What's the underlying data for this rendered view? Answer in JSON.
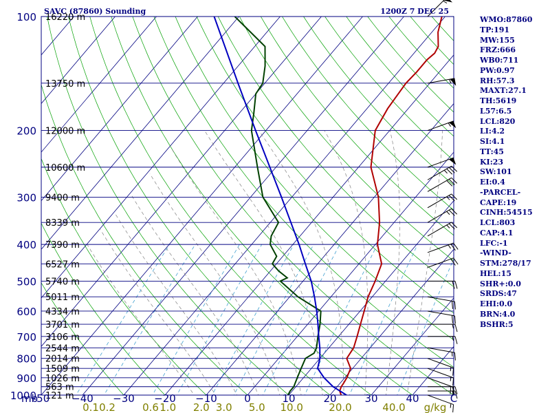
{
  "header": {
    "station": "SAVC (87860) Sounding",
    "time": "1200Z  7 DEC 25"
  },
  "indices": [
    "WMO:87860",
    "TP:191",
    "MW:155",
    "FRZ:666",
    "WB0:711",
    "PW:0.97",
    "RH:57.3",
    "MAXT:27.1",
    "TH:5619",
    "L57:6.5",
    "LCL:820",
    "LI:4.2",
    "SI:4.1",
    "TT:45",
    "KI:23",
    "SW:101",
    "EI:0.4",
    "-PARCEL-",
    "CAPE:19",
    "CINH:54515",
    "LCL:803",
    "CAP:4.1",
    "LFC:-1",
    "-WIND-",
    "STM:278/17",
    "HEL:15",
    "SHR+:0.0",
    "SRDS:47",
    "EHI:0.0",
    "BRN:4.0",
    "BSHR:5"
  ],
  "chart_data": {
    "type": "line",
    "diagram": "skew-T log-P",
    "pressure_unit": "mb",
    "temperature_unit": "C",
    "mixing_ratio_unit": "g/kg",
    "ylim": [
      1000,
      100
    ],
    "xlim": [
      -50,
      50
    ],
    "pressure_ticks": [
      {
        "value": 100,
        "label": "100"
      },
      {
        "value": 200,
        "label": "200"
      },
      {
        "value": 300,
        "label": "300"
      },
      {
        "value": 400,
        "label": "400"
      },
      {
        "value": 500,
        "label": "500"
      },
      {
        "value": 600,
        "label": "600"
      },
      {
        "value": 700,
        "label": "700"
      },
      {
        "value": 800,
        "label": "800"
      },
      {
        "value": 900,
        "label": "900"
      },
      {
        "value": 1000,
        "label": "1000"
      }
    ],
    "pressure_axis_label": "mb",
    "height_levels": [
      {
        "p": 100,
        "label": "16220 m"
      },
      {
        "p": 150,
        "label": "13750 m"
      },
      {
        "p": 200,
        "label": "12000 m"
      },
      {
        "p": 250,
        "label": "10600 m"
      },
      {
        "p": 300,
        "label": "9400 m"
      },
      {
        "p": 350,
        "label": "8339 m"
      },
      {
        "p": 400,
        "label": "7390 m"
      },
      {
        "p": 450,
        "label": "6527 m"
      },
      {
        "p": 500,
        "label": "5740 m"
      },
      {
        "p": 550,
        "label": "5011 m"
      },
      {
        "p": 600,
        "label": "4334 m"
      },
      {
        "p": 650,
        "label": "3701 m"
      },
      {
        "p": 700,
        "label": "3106 m"
      },
      {
        "p": 750,
        "label": "2544 m"
      },
      {
        "p": 800,
        "label": "2014 m"
      },
      {
        "p": 850,
        "label": "1509 m"
      },
      {
        "p": 900,
        "label": "1026 m"
      },
      {
        "p": 950,
        "label": "563 m"
      },
      {
        "p": 1000,
        "label": "121 m"
      }
    ],
    "temperature_ticks": [
      {
        "value": -50,
        "label": "-50"
      },
      {
        "value": -40,
        "label": "−40"
      },
      {
        "value": -30,
        "label": "−30"
      },
      {
        "value": -20,
        "label": "−20"
      },
      {
        "value": -10,
        "label": "−10"
      },
      {
        "value": 0,
        "label": "0"
      },
      {
        "value": 10,
        "label": "10"
      },
      {
        "value": 20,
        "label": "20"
      },
      {
        "value": 30,
        "label": "30"
      },
      {
        "value": 40,
        "label": "40"
      },
      {
        "value": 50,
        "label": "C"
      }
    ],
    "mixing_ratio_labels": [
      {
        "value": 0.1,
        "label": "0.1",
        "x": -38.0
      },
      {
        "value": 0.2,
        "label": "0.2",
        "x": -34.0
      },
      {
        "value": 0.6,
        "label": "0.6",
        "x": -23.5
      },
      {
        "value": 1.0,
        "label": "1.0",
        "x": -19.3
      },
      {
        "value": 2.0,
        "label": "2.0",
        "x": -11.2
      },
      {
        "value": 3.0,
        "label": "3.0",
        "x": -5.7
      },
      {
        "value": 5.0,
        "label": "5.0",
        "x": 2.3
      },
      {
        "value": 10.0,
        "label": "10.0",
        "x": 10.7
      },
      {
        "value": 20.0,
        "label": "20.0",
        "x": 22.5
      },
      {
        "value": 40.0,
        "label": "40.0",
        "x": 35.5
      },
      {
        "value": null,
        "label": "g/kg",
        "x": 45.5
      }
    ],
    "series": [
      {
        "color": "#b00000",
        "points": [
          [
            1000,
            22.7
          ],
          [
            975,
            21.5
          ],
          [
            950,
            21.0
          ],
          [
            925,
            20.8
          ],
          [
            900,
            20.5
          ],
          [
            850,
            19.5
          ],
          [
            800,
            16.5
          ],
          [
            750,
            16.0
          ],
          [
            700,
            14.5
          ],
          [
            650,
            12.8
          ],
          [
            600,
            11.0
          ],
          [
            550,
            9.0
          ],
          [
            500,
            7.5
          ],
          [
            450,
            5.5
          ],
          [
            400,
            0.5
          ],
          [
            350,
            -3.5
          ],
          [
            300,
            -9.0
          ],
          [
            250,
            -17.0
          ],
          [
            200,
            -23.5
          ],
          [
            175,
            -25.0
          ],
          [
            150,
            -25.8
          ],
          [
            140,
            -25.5
          ],
          [
            130,
            -25.5
          ],
          [
            125,
            -25.0
          ],
          [
            120,
            -25.5
          ],
          [
            110,
            -28.5
          ],
          [
            100,
            -30.8
          ]
        ]
      },
      {
        "color": "#004000",
        "points": [
          [
            1000,
            9.8
          ],
          [
            975,
            9.5
          ],
          [
            950,
            9.5
          ],
          [
            925,
            9.0
          ],
          [
            900,
            8.5
          ],
          [
            850,
            7.5
          ],
          [
            800,
            6.5
          ],
          [
            775,
            7.5
          ],
          [
            750,
            7.0
          ],
          [
            700,
            5.0
          ],
          [
            650,
            3.0
          ],
          [
            600,
            0.5
          ],
          [
            550,
            -8.0
          ],
          [
            500,
            -15.5
          ],
          [
            490,
            -14.5
          ],
          [
            470,
            -18.0
          ],
          [
            450,
            -21.0
          ],
          [
            430,
            -21.5
          ],
          [
            400,
            -25.5
          ],
          [
            380,
            -27.0
          ],
          [
            350,
            -28.0
          ],
          [
            300,
            -37.0
          ],
          [
            250,
            -44.5
          ],
          [
            200,
            -53.5
          ],
          [
            180,
            -56.5
          ],
          [
            160,
            -60.0
          ],
          [
            150,
            -60.5
          ],
          [
            135,
            -63.5
          ],
          [
            120,
            -67.5
          ],
          [
            100,
            -81.0
          ]
        ]
      },
      {
        "color": "#0000c0",
        "points": [
          [
            1000,
            24.0
          ],
          [
            950,
            19.0
          ],
          [
            900,
            15.0
          ],
          [
            850,
            11.5
          ],
          [
            800,
            10.0
          ],
          [
            750,
            7.8
          ],
          [
            700,
            5.2
          ],
          [
            650,
            2.5
          ],
          [
            600,
            -0.5
          ],
          [
            550,
            -4.0
          ],
          [
            500,
            -8.0
          ],
          [
            450,
            -13.0
          ],
          [
            400,
            -18.5
          ],
          [
            350,
            -25.0
          ],
          [
            300,
            -32.5
          ],
          [
            250,
            -41.5
          ],
          [
            200,
            -52.5
          ],
          [
            150,
            -66.5
          ],
          [
            100,
            -86.0
          ]
        ]
      }
    ],
    "wind_barbs": [
      {
        "p": 100,
        "dir": 45,
        "kt": 55
      },
      {
        "p": 150,
        "dir": 80,
        "kt": 55
      },
      {
        "p": 200,
        "dir": 70,
        "kt": 55
      },
      {
        "p": 250,
        "dir": 70,
        "kt": 50
      },
      {
        "p": 270,
        "dir": 60,
        "kt": 35
      },
      {
        "p": 290,
        "dir": 60,
        "kt": 30
      },
      {
        "p": 320,
        "dir": 60,
        "kt": 25
      },
      {
        "p": 350,
        "dir": 60,
        "kt": 25
      },
      {
        "p": 380,
        "dir": 60,
        "kt": 25
      },
      {
        "p": 420,
        "dir": 70,
        "kt": 25
      },
      {
        "p": 460,
        "dir": 70,
        "kt": 20
      },
      {
        "p": 500,
        "dir": 90,
        "kt": 20
      },
      {
        "p": 550,
        "dir": 100,
        "kt": 20
      },
      {
        "p": 600,
        "dir": 100,
        "kt": 20
      },
      {
        "p": 650,
        "dir": 90,
        "kt": 15
      },
      {
        "p": 700,
        "dir": 90,
        "kt": 15
      },
      {
        "p": 750,
        "dir": 100,
        "kt": 15
      },
      {
        "p": 800,
        "dir": 110,
        "kt": 15
      },
      {
        "p": 850,
        "dir": 110,
        "kt": 15
      },
      {
        "p": 900,
        "dir": 110,
        "kt": 20
      },
      {
        "p": 950,
        "dir": 90,
        "kt": 20
      },
      {
        "p": 975,
        "dir": 90,
        "kt": 15
      },
      {
        "p": 1000,
        "dir": 110,
        "kt": 15
      }
    ],
    "colors": {
      "frame": "#000080",
      "isobars": "#000080",
      "isotherms": "#000080",
      "dry_adiabats": "#00a000",
      "moist_adiabats": "#808080",
      "mixing_ratio": "#40a0d0",
      "mixing_ratio_labels": "#808000",
      "wind_barbs": "#000000"
    }
  }
}
